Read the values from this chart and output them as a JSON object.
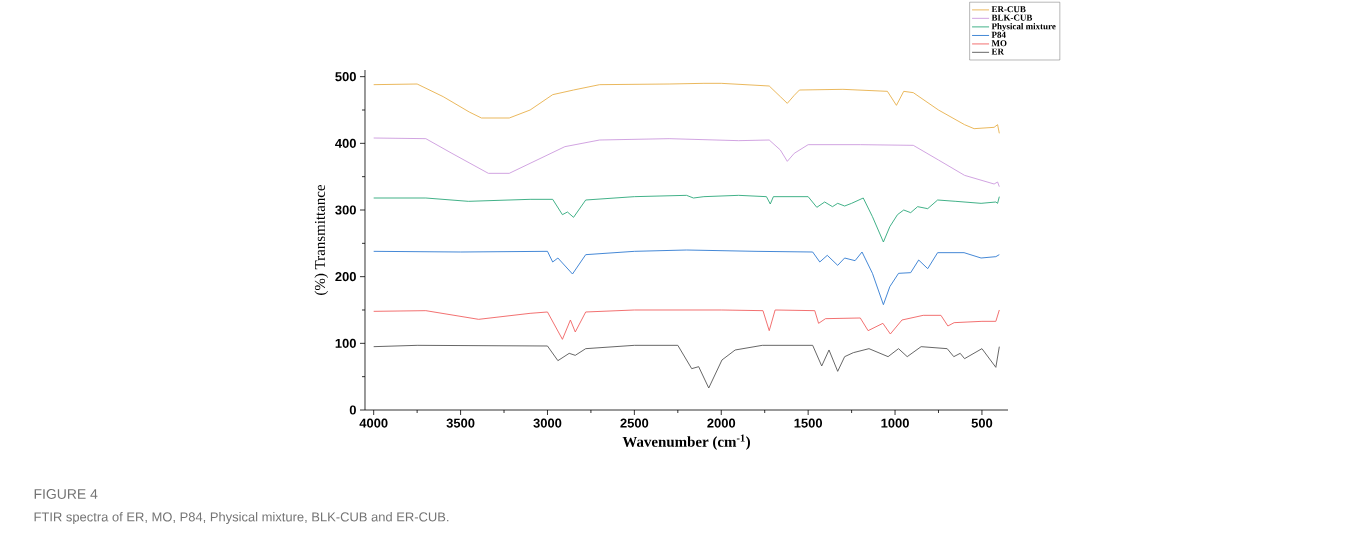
{
  "chart_data": {
    "type": "line",
    "xlabel": "Wavenumber (cm$^{-1}$)",
    "ylabel": "(%) Transmittance",
    "annotations": [
      "FIGURE 4",
      "FTIR spectra of ER, MO, P84, Physical mixture, BLK-CUB and ER-CUB."
    ],
    "xlim": [
      4050,
      350
    ],
    "ylim": [
      0,
      510
    ],
    "xticks": [
      4000,
      3500,
      3000,
      2500,
      2000,
      1500,
      1000,
      500
    ],
    "yticks": [
      0,
      100,
      200,
      300,
      400,
      500
    ],
    "grid": false,
    "legend": "top right",
    "marker": "none",
    "line_style": "solid",
    "series": [
      {
        "name": "ER-CUB",
        "color": "#e8b04a",
        "x": [
          4000,
          3750,
          3600,
          3450,
          3380,
          3220,
          3100,
          2970,
          2850,
          2700,
          2300,
          2100,
          2000,
          1724,
          1660,
          1620,
          1580,
          1550,
          1300,
          1044,
          992,
          950,
          895,
          750,
          600,
          545,
          430,
          410,
          400
        ],
        "values": [
          488,
          489,
          470,
          447,
          438,
          438,
          450,
          473,
          480,
          488,
          489,
          490,
          490,
          486,
          470,
          460,
          472,
          480,
          481,
          478,
          457,
          478,
          476,
          450,
          428,
          422,
          424,
          428,
          415
        ]
      },
      {
        "name": "BLK-CUB",
        "color": "#cc99dd",
        "x": [
          4000,
          3700,
          3550,
          3340,
          3220,
          3100,
          2900,
          2700,
          2300,
          1900,
          1724,
          1660,
          1620,
          1580,
          1500,
          1200,
          895,
          750,
          600,
          430,
          410,
          400
        ],
        "values": [
          408,
          407,
          385,
          355,
          355,
          370,
          395,
          405,
          407,
          404,
          405,
          390,
          373,
          385,
          398,
          398,
          397,
          375,
          352,
          339,
          342,
          335
        ]
      },
      {
        "name": "Physical mixture",
        "color": "#2ca87a",
        "x": [
          4000,
          3700,
          3455,
          3100,
          2970,
          2914,
          2885,
          2850,
          2780,
          2500,
          2200,
          2160,
          2100,
          1900,
          1740,
          1718,
          1700,
          1500,
          1450,
          1405,
          1360,
          1330,
          1290,
          1250,
          1183,
          1130,
          1067,
          1030,
          986,
          950,
          910,
          870,
          812,
          755,
          650,
          505,
          420,
          410,
          400
        ],
        "values": [
          318,
          318,
          313,
          316,
          316,
          293,
          297,
          289,
          315,
          320,
          322,
          318,
          320,
          322,
          320,
          309,
          320,
          320,
          304,
          312,
          305,
          310,
          306,
          310,
          318,
          290,
          252,
          275,
          293,
          300,
          296,
          305,
          302,
          315,
          313,
          310,
          312,
          310,
          320
        ]
      },
      {
        "name": "P84",
        "color": "#2f7ad1",
        "x": [
          4000,
          3500,
          3000,
          2970,
          2940,
          2856,
          2780,
          2500,
          2200,
          1800,
          1474,
          1433,
          1390,
          1330,
          1290,
          1230,
          1190,
          1130,
          1067,
          1030,
          980,
          910,
          864,
          812,
          755,
          603,
          505,
          420,
          400
        ],
        "values": [
          238,
          237,
          238,
          222,
          228,
          204,
          233,
          238,
          240,
          238,
          237,
          222,
          232,
          217,
          228,
          224,
          237,
          205,
          158,
          185,
          205,
          206,
          225,
          212,
          236,
          236,
          228,
          230,
          233
        ]
      },
      {
        "name": "MO",
        "color": "#f06060",
        "x": [
          4000,
          3700,
          3396,
          3100,
          3000,
          2914,
          2868,
          2840,
          2780,
          2500,
          2000,
          1760,
          1724,
          1690,
          1462,
          1440,
          1400,
          1200,
          1155,
          1070,
          1027,
          960,
          838,
          736,
          696,
          660,
          500,
          420,
          400
        ],
        "values": [
          148,
          149,
          136,
          145,
          147,
          106,
          135,
          117,
          147,
          150,
          150,
          149,
          119,
          150,
          149,
          130,
          137,
          138,
          119,
          130,
          114,
          135,
          142,
          142,
          126,
          131,
          133,
          133,
          150
        ]
      },
      {
        "name": "ER",
        "color": "#555555",
        "x": [
          4000,
          3750,
          3000,
          2940,
          2875,
          2840,
          2780,
          2500,
          2250,
          2170,
          2130,
          2072,
          1996,
          1920,
          1764,
          1474,
          1422,
          1380,
          1330,
          1290,
          1240,
          1150,
          1040,
          980,
          930,
          850,
          700,
          662,
          625,
          600,
          500,
          420,
          400
        ],
        "values": [
          95,
          97,
          96,
          74,
          85,
          82,
          92,
          97,
          97,
          62,
          65,
          33,
          75,
          90,
          97,
          97,
          66,
          90,
          58,
          80,
          86,
          92,
          80,
          92,
          80,
          95,
          92,
          80,
          85,
          77,
          92,
          64,
          95
        ]
      }
    ]
  }
}
